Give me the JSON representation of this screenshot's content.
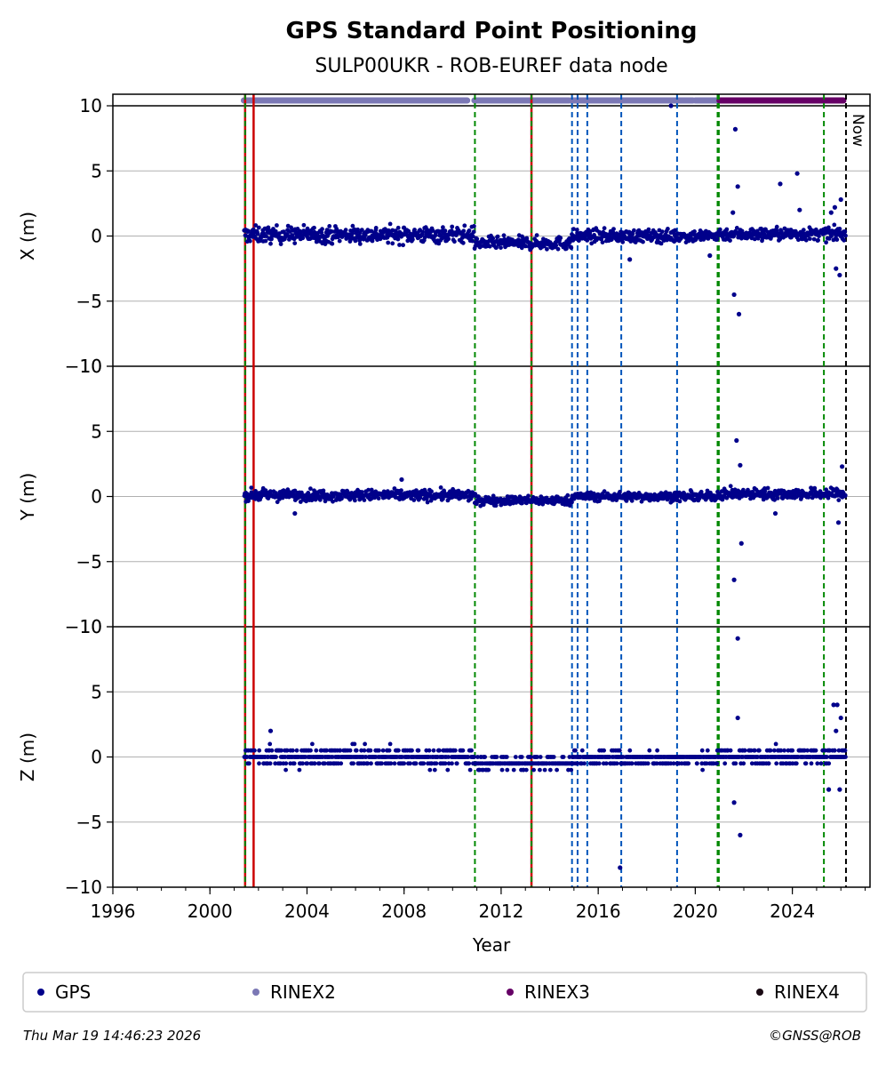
{
  "chart_data": {
    "type": "scatter",
    "title": "GPS Standard Point Positioning",
    "subtitle": "SULP00UKR - ROB-EUREF data node",
    "xlabel": "Year",
    "xlim": [
      1996,
      2027.2
    ],
    "x_ticks": [
      "1996",
      "2000",
      "2004",
      "2008",
      "2012",
      "2016",
      "2020",
      "2024"
    ],
    "now_label": "Now",
    "now_year": 2026.21,
    "colors": {
      "gps": "#00008b",
      "rinex2": "#7b78b5",
      "rinex3": "#660066",
      "rinex4": "#1a0a14",
      "event_red": "#cc0000",
      "event_green": "#008800",
      "event_blue": "#0055bb",
      "grid": "#b0b0b0"
    },
    "panels": [
      {
        "name": "X",
        "ylabel": "X (m)",
        "ylim": [
          -10,
          10
        ],
        "y_ticks": [
          "−10",
          "−5",
          "0",
          "5",
          "10"
        ],
        "segments": [
          [
            2001.4,
            2010.9,
            0.1,
            0.45
          ],
          [
            2010.9,
            2014.9,
            -0.55,
            0.35
          ],
          [
            2014.9,
            2020.9,
            0.0,
            0.35
          ],
          [
            2020.9,
            2026.2,
            0.15,
            0.35
          ]
        ],
        "outliers": [
          [
            2021.65,
            8.2
          ],
          [
            2021.75,
            3.8
          ],
          [
            2021.55,
            1.8
          ],
          [
            2021.6,
            -4.5
          ],
          [
            2021.8,
            -6.0
          ],
          [
            2023.5,
            4.0
          ],
          [
            2024.2,
            4.8
          ],
          [
            2024.3,
            2.0
          ],
          [
            2025.6,
            1.8
          ],
          [
            2025.75,
            2.2
          ],
          [
            2026.0,
            2.8
          ],
          [
            2025.8,
            -2.5
          ],
          [
            2025.95,
            -3.0
          ],
          [
            2017.3,
            -1.8
          ],
          [
            2019.0,
            10.0
          ],
          [
            2020.6,
            -1.5
          ]
        ]
      },
      {
        "name": "Y",
        "ylabel": "Y (m)",
        "ylim": [
          -10,
          10
        ],
        "y_ticks": [
          "−10",
          "−5",
          "0",
          "5",
          "10"
        ],
        "segments": [
          [
            2001.4,
            2010.9,
            0.1,
            0.3
          ],
          [
            2010.9,
            2014.9,
            -0.3,
            0.25
          ],
          [
            2014.9,
            2020.9,
            0.0,
            0.25
          ],
          [
            2020.9,
            2026.2,
            0.2,
            0.3
          ]
        ],
        "outliers": [
          [
            2021.7,
            4.3
          ],
          [
            2021.85,
            2.4
          ],
          [
            2021.6,
            -6.4
          ],
          [
            2021.75,
            -10.9
          ],
          [
            2021.9,
            -3.6
          ],
          [
            2026.05,
            2.3
          ],
          [
            2025.9,
            -2.0
          ],
          [
            2023.3,
            -1.3
          ],
          [
            2007.9,
            1.3
          ],
          [
            2003.5,
            -1.3
          ]
        ]
      },
      {
        "name": "Z",
        "ylabel": "Z (m)",
        "ylim": [
          -10,
          10
        ],
        "y_ticks": [
          "−10",
          "−5",
          "0",
          "5",
          "10"
        ],
        "quantized": true,
        "segments": [
          [
            2001.4,
            2010.9,
            0.0,
            0.5
          ],
          [
            2010.9,
            2014.9,
            -0.45,
            0.35
          ],
          [
            2014.9,
            2020.9,
            -0.1,
            0.35
          ],
          [
            2020.9,
            2026.2,
            0.1,
            0.4
          ]
        ],
        "outliers": [
          [
            2021.6,
            -3.5
          ],
          [
            2021.75,
            3.0
          ],
          [
            2021.85,
            -6.0
          ],
          [
            2016.9,
            -8.5
          ],
          [
            2025.7,
            4.0
          ],
          [
            2025.85,
            4.0
          ],
          [
            2026.0,
            3.0
          ],
          [
            2025.8,
            2.0
          ],
          [
            2025.5,
            -2.5
          ],
          [
            2025.95,
            -2.5
          ],
          [
            2002.5,
            2.0
          ]
        ]
      }
    ],
    "event_lines": [
      {
        "year": 2001.45,
        "style": "red-green"
      },
      {
        "year": 2001.8,
        "style": "red"
      },
      {
        "year": 2010.92,
        "style": "green"
      },
      {
        "year": 2013.25,
        "style": "red-green"
      },
      {
        "year": 2014.92,
        "style": "blue"
      },
      {
        "year": 2015.15,
        "style": "blue"
      },
      {
        "year": 2015.55,
        "style": "blue"
      },
      {
        "year": 2016.95,
        "style": "blue"
      },
      {
        "year": 2019.25,
        "style": "blue"
      },
      {
        "year": 2020.92,
        "style": "green"
      },
      {
        "year": 2020.97,
        "style": "green"
      },
      {
        "year": 2025.3,
        "style": "green"
      }
    ],
    "data_bars": [
      {
        "series": "rinex2",
        "from": 2001.4,
        "to": 2010.6
      },
      {
        "series": "rinex2",
        "from": 2010.9,
        "to": 2014.8
      },
      {
        "series": "rinex2",
        "from": 2014.9,
        "to": 2019.9
      },
      {
        "series": "rinex2",
        "from": 2020.0,
        "to": 2021.0
      },
      {
        "series": "rinex3",
        "from": 2021.0,
        "to": 2026.1
      }
    ],
    "legend": {
      "placement": "bottom",
      "entries": [
        {
          "label": "GPS",
          "series": "gps"
        },
        {
          "label": "RINEX2",
          "series": "rinex2"
        },
        {
          "label": "RINEX3",
          "series": "rinex3"
        },
        {
          "label": "RINEX4",
          "series": "rinex4"
        }
      ]
    }
  },
  "footer": {
    "timestamp": "Thu Mar 19 14:46:23 2026",
    "credit": "©GNSS@ROB"
  }
}
